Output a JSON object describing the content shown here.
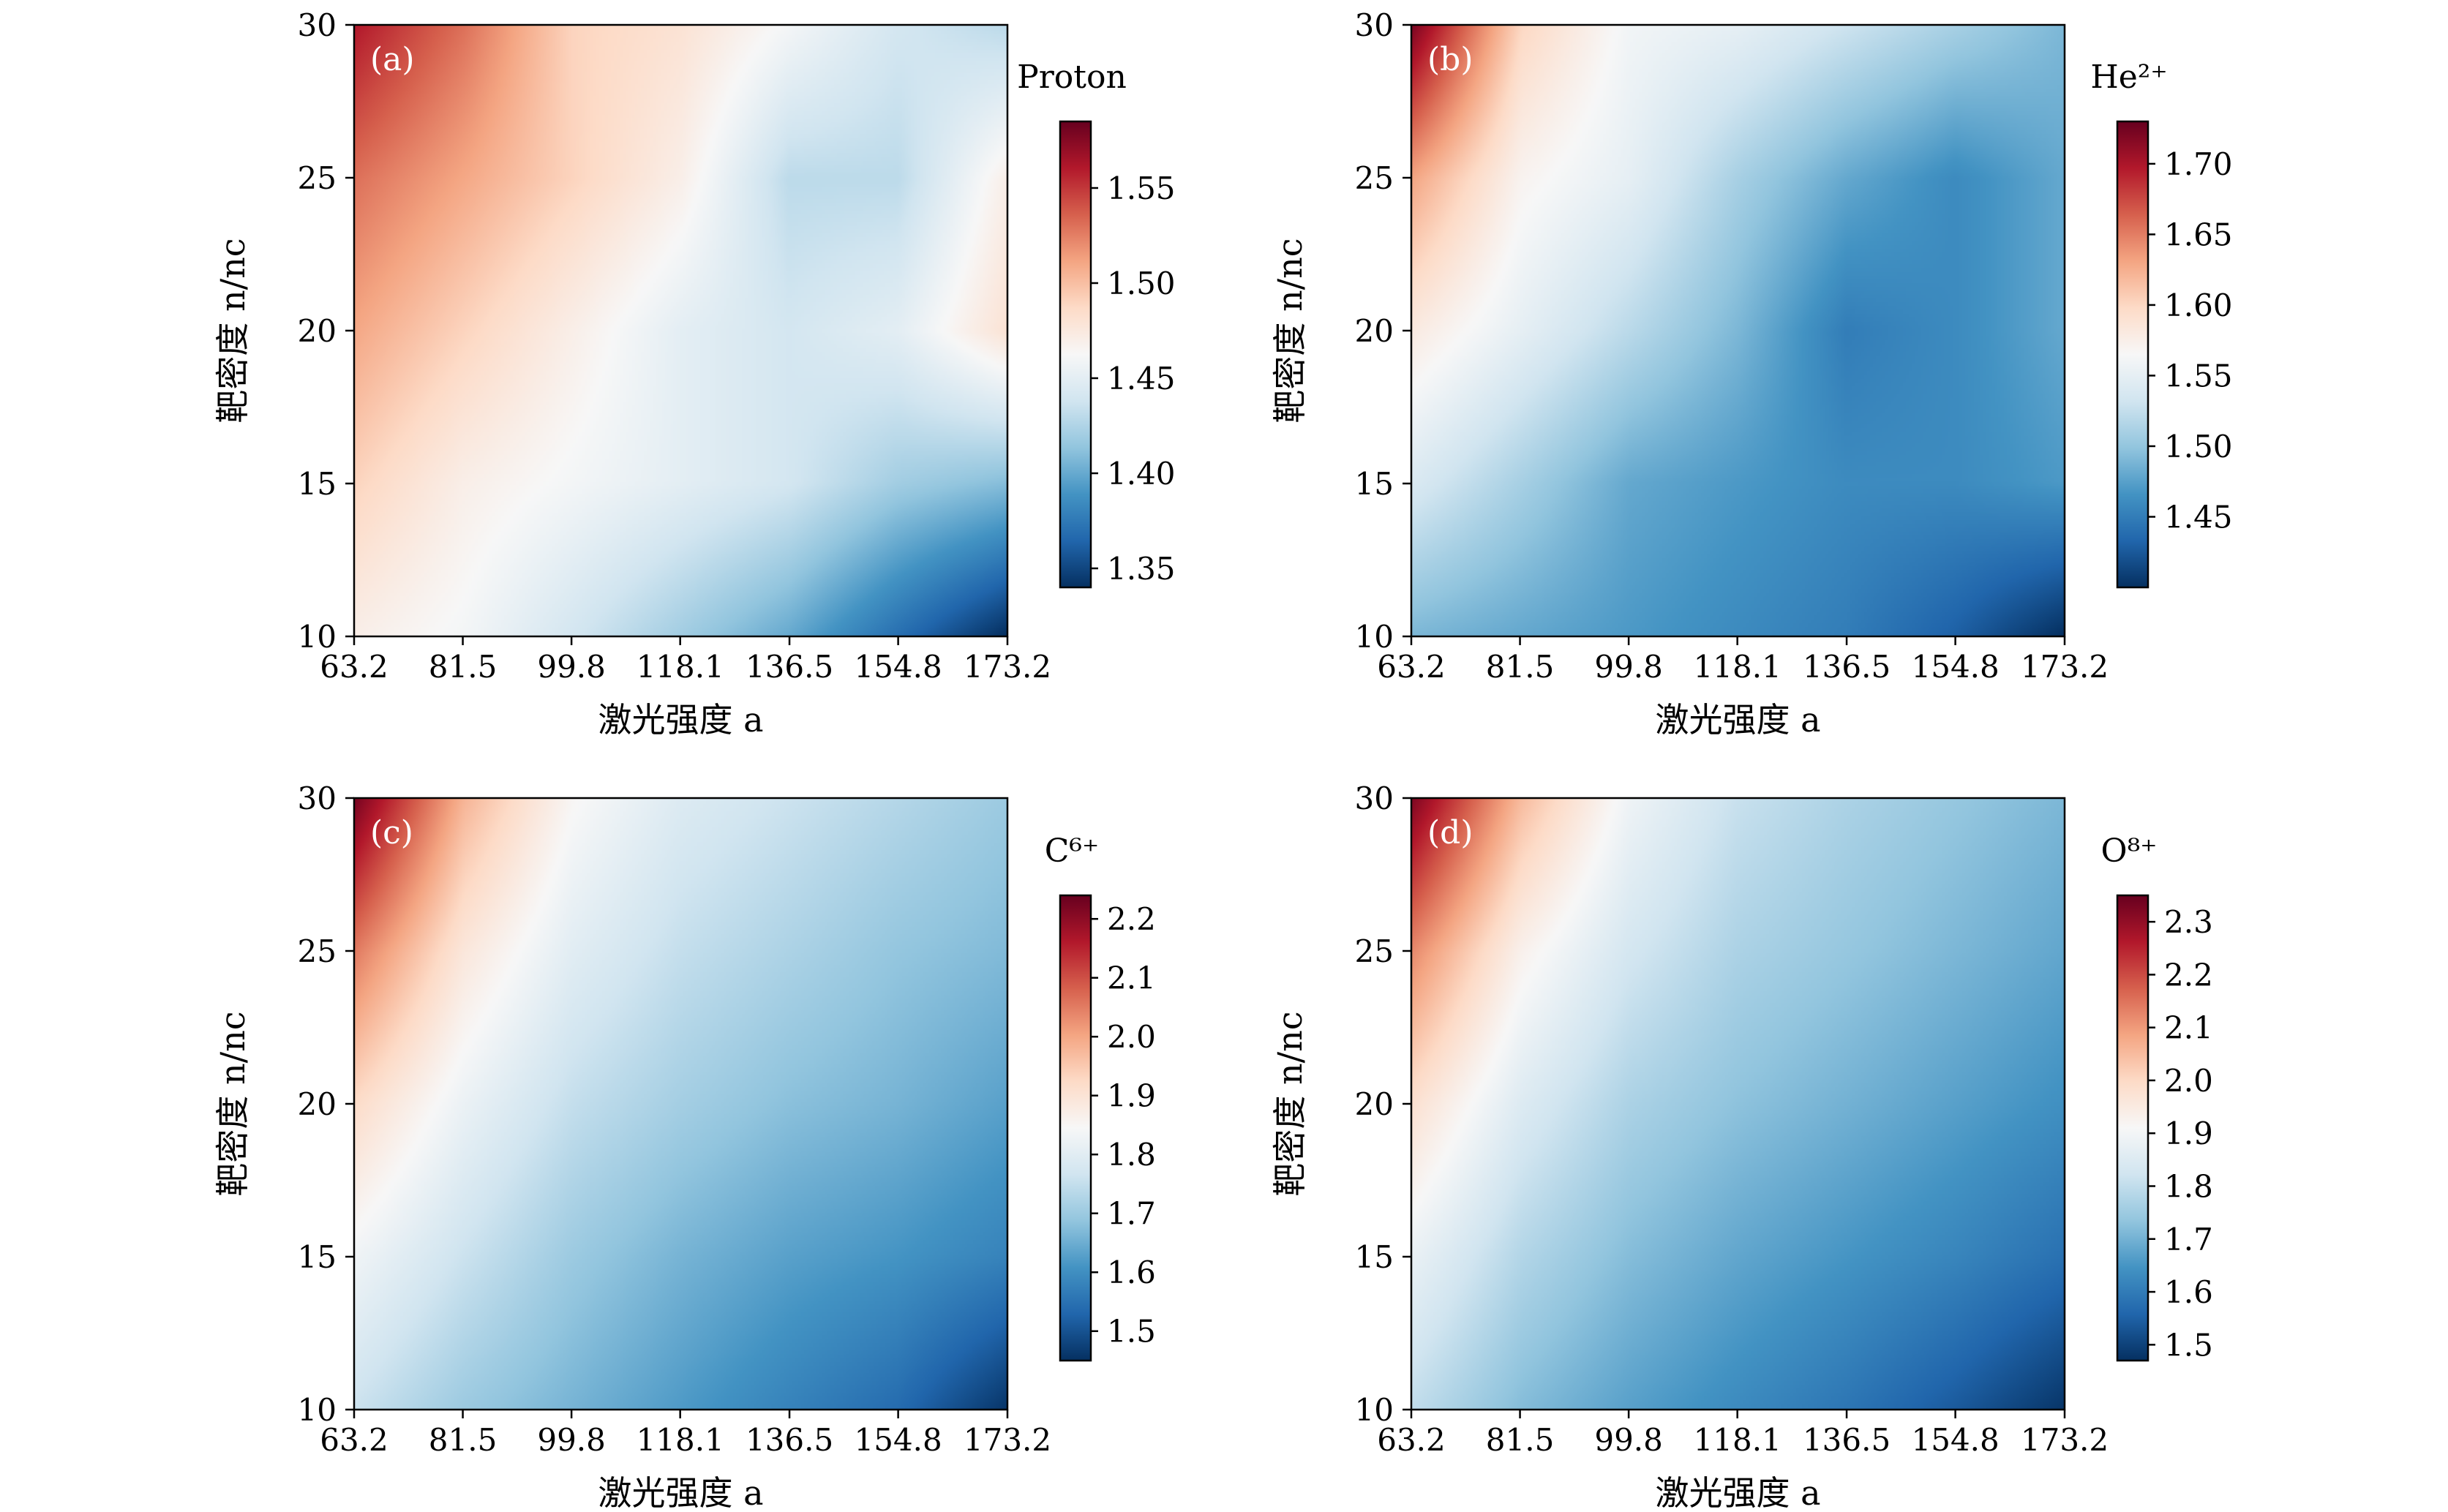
{
  "colors": {
    "cmap": [
      "#053061",
      "#2166ac",
      "#4393c3",
      "#92c5de",
      "#d1e5f0",
      "#f7f7f7",
      "#fddbc7",
      "#f4a582",
      "#d6604d",
      "#b2182b",
      "#67001f"
    ],
    "panel_label": "#ffffff"
  },
  "chart_data": [
    {
      "type": "heatmap",
      "panel": "(a)",
      "colorbar_label": "Proton",
      "colorbar_ticks": [
        "1.35",
        "1.40",
        "1.45",
        "1.50",
        "1.55"
      ],
      "colorbar_tick_values": [
        1.35,
        1.4,
        1.45,
        1.5,
        1.55
      ],
      "clim": [
        1.34,
        1.585
      ],
      "xlabel": "激光强度 a",
      "ylabel": "靶密度 n/nc",
      "x_ticks": [
        "63.2",
        "81.5",
        "99.8",
        "118.1",
        "136.5",
        "154.8",
        "173.2"
      ],
      "y_ticks": [
        "10",
        "15",
        "20",
        "25",
        "30"
      ],
      "xlim": [
        63.2,
        173.2
      ],
      "ylim": [
        10,
        30
      ],
      "x": [
        63.2,
        81.5,
        99.8,
        118.1,
        136.5,
        154.8,
        173.2
      ],
      "y": [
        10,
        15,
        20,
        25,
        30
      ],
      "z": [
        [
          1.47,
          1.46,
          1.44,
          1.42,
          1.4,
          1.37,
          1.34
        ],
        [
          1.49,
          1.47,
          1.46,
          1.45,
          1.44,
          1.42,
          1.41
        ],
        [
          1.51,
          1.49,
          1.47,
          1.45,
          1.44,
          1.45,
          1.48
        ],
        [
          1.53,
          1.51,
          1.49,
          1.47,
          1.43,
          1.43,
          1.47
        ],
        [
          1.56,
          1.53,
          1.49,
          1.48,
          1.46,
          1.44,
          1.43
        ]
      ]
    },
    {
      "type": "heatmap",
      "panel": "(b)",
      "colorbar_label": "He²⁺",
      "colorbar_ticks": [
        "1.45",
        "1.50",
        "1.55",
        "1.60",
        "1.65",
        "1.70"
      ],
      "colorbar_tick_values": [
        1.45,
        1.5,
        1.55,
        1.6,
        1.65,
        1.7
      ],
      "clim": [
        1.4,
        1.73
      ],
      "xlabel": "激光强度 a",
      "ylabel": "靶密度 n/nc",
      "x_ticks": [
        "63.2",
        "81.5",
        "99.8",
        "118.1",
        "136.5",
        "154.8",
        "173.2"
      ],
      "y_ticks": [
        "10",
        "15",
        "20",
        "25",
        "30"
      ],
      "xlim": [
        63.2,
        173.2
      ],
      "ylim": [
        10,
        30
      ],
      "x": [
        63.2,
        81.5,
        99.8,
        118.1,
        136.5,
        154.8,
        173.2
      ],
      "y": [
        10,
        15,
        20,
        25,
        30
      ],
      "z": [
        [
          1.49,
          1.48,
          1.47,
          1.46,
          1.45,
          1.43,
          1.4
        ],
        [
          1.54,
          1.51,
          1.48,
          1.47,
          1.46,
          1.46,
          1.47
        ],
        [
          1.58,
          1.55,
          1.52,
          1.49,
          1.45,
          1.46,
          1.48
        ],
        [
          1.63,
          1.57,
          1.55,
          1.51,
          1.48,
          1.46,
          1.48
        ],
        [
          1.72,
          1.6,
          1.56,
          1.55,
          1.53,
          1.51,
          1.49
        ]
      ]
    },
    {
      "type": "heatmap",
      "panel": "(c)",
      "colorbar_label": "C⁶⁺",
      "colorbar_ticks": [
        "1.5",
        "1.6",
        "1.7",
        "1.8",
        "1.9",
        "2.0",
        "2.1",
        "2.2"
      ],
      "colorbar_tick_values": [
        1.5,
        1.6,
        1.7,
        1.8,
        1.9,
        2.0,
        2.1,
        2.2
      ],
      "clim": [
        1.45,
        2.24
      ],
      "xlabel": "激光强度 a",
      "ylabel": "靶密度 n/nc",
      "x_ticks": [
        "63.2",
        "81.5",
        "99.8",
        "118.1",
        "136.5",
        "154.8",
        "173.2"
      ],
      "y_ticks": [
        "10",
        "15",
        "20",
        "25",
        "30"
      ],
      "xlim": [
        63.2,
        173.2
      ],
      "ylim": [
        10,
        30
      ],
      "x": [
        63.2,
        81.5,
        99.8,
        118.1,
        136.5,
        154.8,
        173.2
      ],
      "y": [
        10,
        15,
        20,
        25,
        30
      ],
      "z": [
        [
          1.76,
          1.7,
          1.66,
          1.62,
          1.58,
          1.54,
          1.46
        ],
        [
          1.83,
          1.76,
          1.7,
          1.66,
          1.63,
          1.61,
          1.58
        ],
        [
          1.92,
          1.82,
          1.75,
          1.71,
          1.68,
          1.66,
          1.63
        ],
        [
          2.05,
          1.89,
          1.8,
          1.75,
          1.72,
          1.69,
          1.67
        ],
        [
          2.22,
          1.98,
          1.85,
          1.79,
          1.76,
          1.73,
          1.7
        ]
      ]
    },
    {
      "type": "heatmap",
      "panel": "(d)",
      "colorbar_label": "O⁸⁺",
      "colorbar_ticks": [
        "1.5",
        "1.6",
        "1.7",
        "1.8",
        "1.9",
        "2.0",
        "2.1",
        "2.2",
        "2.3"
      ],
      "colorbar_tick_values": [
        1.5,
        1.6,
        1.7,
        1.8,
        1.9,
        2.0,
        2.1,
        2.2,
        2.3
      ],
      "clim": [
        1.47,
        2.35
      ],
      "xlabel": "激光强度 a",
      "ylabel": "靶密度 n/nc",
      "x_ticks": [
        "63.2",
        "81.5",
        "99.8",
        "118.1",
        "136.5",
        "154.8",
        "173.2"
      ],
      "y_ticks": [
        "10",
        "15",
        "20",
        "25",
        "30"
      ],
      "xlim": [
        63.2,
        173.2
      ],
      "ylim": [
        10,
        30
      ],
      "x": [
        63.2,
        81.5,
        99.8,
        118.1,
        136.5,
        154.8,
        173.2
      ],
      "y": [
        10,
        15,
        20,
        25,
        30
      ],
      "z": [
        [
          1.8,
          1.72,
          1.67,
          1.63,
          1.59,
          1.54,
          1.48
        ],
        [
          1.88,
          1.78,
          1.72,
          1.68,
          1.65,
          1.62,
          1.58
        ],
        [
          1.98,
          1.85,
          1.77,
          1.73,
          1.7,
          1.67,
          1.64
        ],
        [
          2.12,
          1.93,
          1.83,
          1.77,
          1.74,
          1.71,
          1.68
        ],
        [
          2.32,
          2.05,
          1.89,
          1.81,
          1.77,
          1.74,
          1.71
        ]
      ]
    }
  ]
}
